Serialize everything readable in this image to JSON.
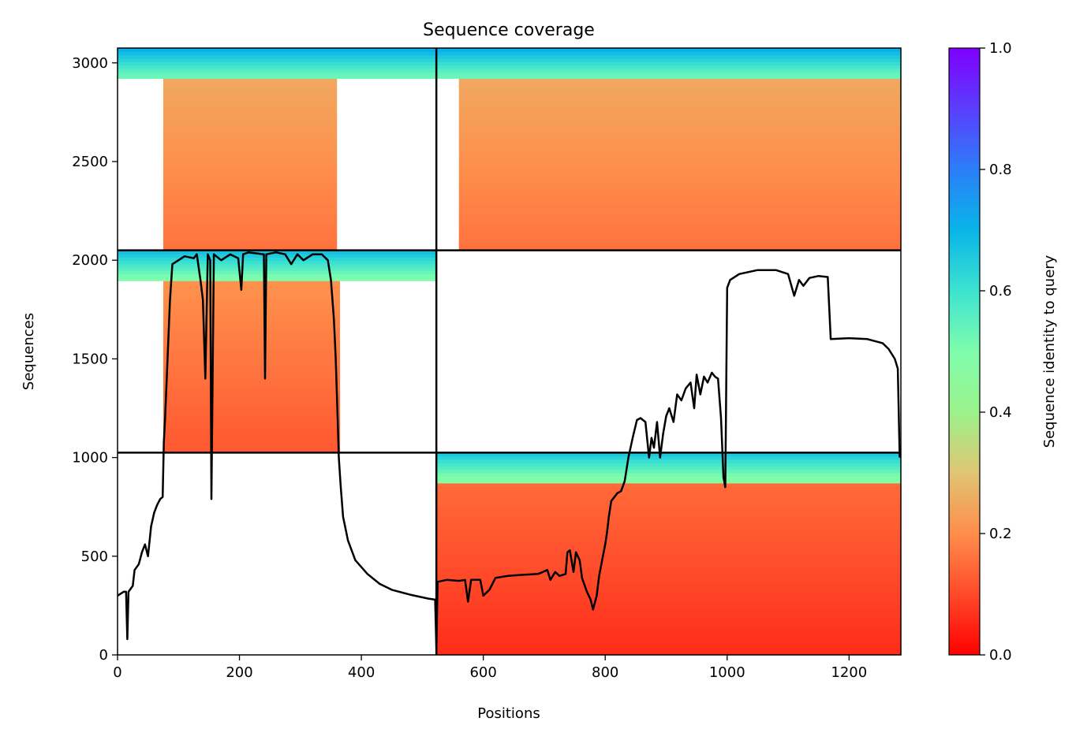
{
  "chart_data": {
    "type": "heatmap",
    "title": "Sequence coverage",
    "xlabel": "Positions",
    "ylabel": "Sequences",
    "xlim": [
      0,
      1285
    ],
    "ylim": [
      0,
      3075
    ],
    "xticks": [
      "0",
      "200",
      "400",
      "600",
      "800",
      "1000",
      "1200"
    ],
    "xtick_values": [
      0,
      200,
      400,
      600,
      800,
      1000,
      1200
    ],
    "yticks": [
      "0",
      "500",
      "1000",
      "1500",
      "2000",
      "2500",
      "3000"
    ],
    "ytick_values": [
      0,
      500,
      1000,
      1500,
      2000,
      2500,
      3000
    ],
    "grid": false,
    "colorbar": {
      "label": "Sequence identity to query",
      "colormap": "rainbow_r",
      "range": [
        0.0,
        1.0
      ],
      "ticks": [
        "0.0",
        "0.2",
        "0.4",
        "0.6",
        "0.8",
        "1.0"
      ],
      "tick_values": [
        0.0,
        0.2,
        0.4,
        0.6,
        0.8,
        1.0
      ]
    },
    "chain_boundaries": {
      "x": [
        0,
        523,
        1285
      ],
      "y": [
        0,
        1025,
        2050,
        3075
      ]
    },
    "coverage_blocks": [
      {
        "block": "A",
        "x": [
          0,
          523
        ],
        "seq": [
          2050,
          3075
        ],
        "x_extent": [
          75,
          360
        ],
        "top_identity": 0.65,
        "bottom_identity": 0.22
      },
      {
        "block": "B",
        "x": [
          523,
          1285
        ],
        "seq": [
          2050,
          3075
        ],
        "x_extent": [
          560,
          1285
        ],
        "top_identity": 0.65,
        "bottom_identity": 0.22
      },
      {
        "block": "C",
        "x": [
          0,
          523
        ],
        "seq": [
          1025,
          2050
        ],
        "x_extent": [
          75,
          365
        ],
        "top_identity": 0.62,
        "bottom_identity": 0.18
      },
      {
        "block": "D",
        "x": [
          523,
          1285
        ],
        "seq": [
          0,
          1025
        ],
        "x_extent": [
          523,
          1285
        ],
        "top_identity": 0.6,
        "bottom_identity": 0.12
      }
    ],
    "series": [
      {
        "type": "line",
        "color": "#000000",
        "points": [
          [
            0,
            300
          ],
          [
            10,
            320
          ],
          [
            14,
            320
          ],
          [
            16,
            80
          ],
          [
            18,
            320
          ],
          [
            25,
            350
          ],
          [
            28,
            430
          ],
          [
            35,
            460
          ],
          [
            40,
            520
          ],
          [
            45,
            560
          ],
          [
            50,
            500
          ],
          [
            55,
            650
          ],
          [
            60,
            720
          ],
          [
            65,
            760
          ],
          [
            70,
            790
          ],
          [
            74,
            800
          ],
          [
            76,
            1080
          ],
          [
            78,
            1200
          ],
          [
            82,
            1500
          ],
          [
            86,
            1800
          ],
          [
            90,
            1980
          ],
          [
            100,
            2000
          ],
          [
            110,
            2020
          ],
          [
            125,
            2010
          ],
          [
            130,
            2030
          ],
          [
            136,
            1900
          ],
          [
            140,
            1800
          ],
          [
            144,
            1400
          ],
          [
            148,
            2030
          ],
          [
            152,
            2000
          ],
          [
            154,
            790
          ],
          [
            158,
            2030
          ],
          [
            170,
            2000
          ],
          [
            185,
            2030
          ],
          [
            198,
            2010
          ],
          [
            203,
            1850
          ],
          [
            206,
            2030
          ],
          [
            215,
            2040
          ],
          [
            240,
            2030
          ],
          [
            242,
            1400
          ],
          [
            244,
            2030
          ],
          [
            260,
            2040
          ],
          [
            275,
            2030
          ],
          [
            285,
            1980
          ],
          [
            295,
            2030
          ],
          [
            305,
            2000
          ],
          [
            320,
            2030
          ],
          [
            335,
            2030
          ],
          [
            345,
            2000
          ],
          [
            350,
            1900
          ],
          [
            355,
            1700
          ],
          [
            358,
            1500
          ],
          [
            361,
            1200
          ],
          [
            363,
            1000
          ],
          [
            366,
            860
          ],
          [
            370,
            700
          ],
          [
            378,
            580
          ],
          [
            390,
            480
          ],
          [
            410,
            410
          ],
          [
            430,
            360
          ],
          [
            450,
            330
          ],
          [
            480,
            305
          ],
          [
            510,
            285
          ],
          [
            521,
            280
          ],
          [
            523,
            30
          ],
          [
            525,
            370
          ],
          [
            540,
            380
          ],
          [
            560,
            375
          ],
          [
            570,
            380
          ],
          [
            575,
            270
          ],
          [
            580,
            380
          ],
          [
            595,
            380
          ],
          [
            600,
            300
          ],
          [
            610,
            330
          ],
          [
            620,
            390
          ],
          [
            640,
            400
          ],
          [
            660,
            405
          ],
          [
            690,
            410
          ],
          [
            705,
            430
          ],
          [
            710,
            380
          ],
          [
            718,
            420
          ],
          [
            725,
            400
          ],
          [
            735,
            410
          ],
          [
            738,
            520
          ],
          [
            742,
            530
          ],
          [
            748,
            420
          ],
          [
            752,
            520
          ],
          [
            758,
            480
          ],
          [
            762,
            390
          ],
          [
            770,
            320
          ],
          [
            776,
            280
          ],
          [
            780,
            230
          ],
          [
            786,
            300
          ],
          [
            790,
            400
          ],
          [
            795,
            480
          ],
          [
            800,
            560
          ],
          [
            803,
            620
          ],
          [
            806,
            700
          ],
          [
            810,
            780
          ],
          [
            815,
            800
          ],
          [
            820,
            820
          ],
          [
            826,
            830
          ],
          [
            832,
            880
          ],
          [
            838,
            1000
          ],
          [
            845,
            1100
          ],
          [
            852,
            1190
          ],
          [
            858,
            1200
          ],
          [
            866,
            1180
          ],
          [
            872,
            1000
          ],
          [
            876,
            1100
          ],
          [
            880,
            1050
          ],
          [
            885,
            1180
          ],
          [
            890,
            1000
          ],
          [
            895,
            1120
          ],
          [
            900,
            1210
          ],
          [
            905,
            1250
          ],
          [
            912,
            1180
          ],
          [
            918,
            1320
          ],
          [
            925,
            1290
          ],
          [
            932,
            1350
          ],
          [
            940,
            1380
          ],
          [
            946,
            1250
          ],
          [
            950,
            1420
          ],
          [
            956,
            1320
          ],
          [
            962,
            1410
          ],
          [
            968,
            1380
          ],
          [
            975,
            1430
          ],
          [
            980,
            1410
          ],
          [
            985,
            1400
          ],
          [
            990,
            1200
          ],
          [
            994,
            900
          ],
          [
            997,
            850
          ],
          [
            1000,
            1860
          ],
          [
            1005,
            1900
          ],
          [
            1020,
            1930
          ],
          [
            1050,
            1950
          ],
          [
            1080,
            1950
          ],
          [
            1100,
            1930
          ],
          [
            1110,
            1820
          ],
          [
            1118,
            1900
          ],
          [
            1125,
            1870
          ],
          [
            1135,
            1910
          ],
          [
            1150,
            1920
          ],
          [
            1165,
            1915
          ],
          [
            1170,
            1600
          ],
          [
            1200,
            1605
          ],
          [
            1230,
            1600
          ],
          [
            1255,
            1580
          ],
          [
            1265,
            1550
          ],
          [
            1275,
            1500
          ],
          [
            1280,
            1450
          ],
          [
            1283,
            1000
          ]
        ]
      }
    ]
  }
}
